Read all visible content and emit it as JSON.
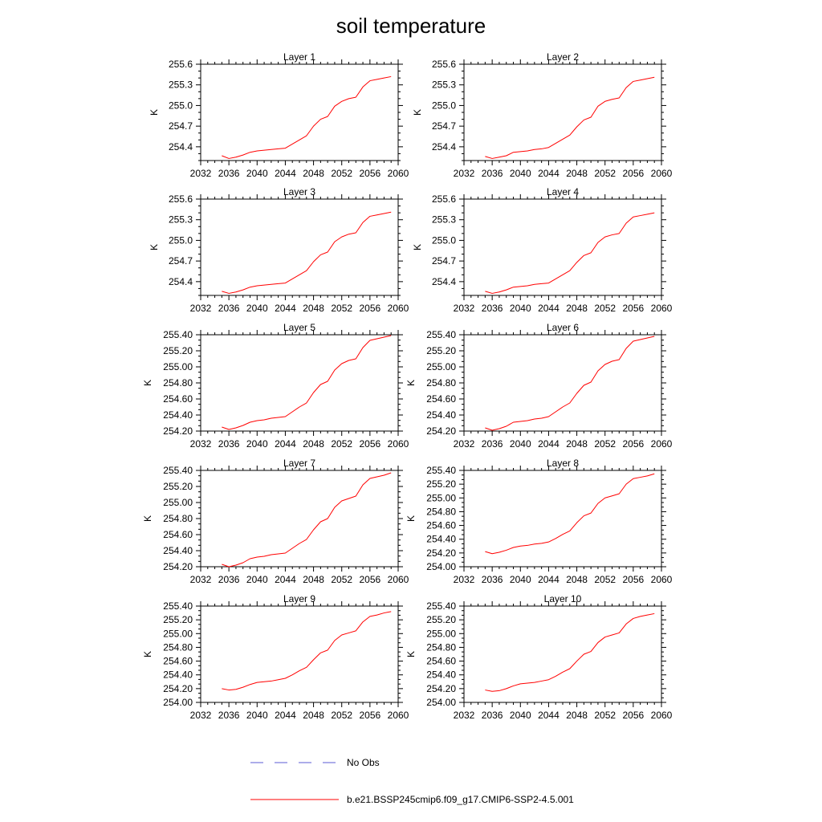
{
  "title": "soil temperature",
  "colors": {
    "model": "#ff0000",
    "obs": "#5b5bd6"
  },
  "legend": {
    "items": [
      {
        "label": "No Obs",
        "style": "dashed",
        "color": "#5b5bd6"
      },
      {
        "label": "b.e21.BSSP245cmip6.f09_g17.CMIP6-SSP2-4.5.001",
        "style": "solid",
        "color": "#ff0000"
      }
    ]
  },
  "chart_data": [
    {
      "type": "line",
      "title": "Layer 1",
      "ylabel": "K",
      "xlim": [
        2032,
        2060
      ],
      "ylim": [
        254.2,
        255.6
      ],
      "xticks": [
        2032,
        2036,
        2040,
        2044,
        2048,
        2052,
        2056,
        2060
      ],
      "yticks": [
        "254.4",
        "254.7",
        "255.0",
        "255.3",
        "255.6"
      ],
      "x": [
        2035,
        2036,
        2037,
        2038,
        2039,
        2040,
        2041,
        2042,
        2043,
        2044,
        2045,
        2046,
        2047,
        2048,
        2049,
        2050,
        2051,
        2052,
        2053,
        2054,
        2055,
        2056,
        2057,
        2058,
        2059
      ],
      "y": [
        254.27,
        254.23,
        254.25,
        254.28,
        254.32,
        254.34,
        254.35,
        254.36,
        254.37,
        254.38,
        254.44,
        254.5,
        254.56,
        254.7,
        254.8,
        254.84,
        254.99,
        255.06,
        255.1,
        255.12,
        255.27,
        255.36,
        255.38,
        255.4,
        255.42
      ]
    },
    {
      "type": "line",
      "title": "Layer 2",
      "ylabel": "K",
      "xlim": [
        2032,
        2060
      ],
      "ylim": [
        254.2,
        255.6
      ],
      "xticks": [
        2032,
        2036,
        2040,
        2044,
        2048,
        2052,
        2056,
        2060
      ],
      "yticks": [
        "254.4",
        "254.7",
        "255.0",
        "255.3",
        "255.6"
      ],
      "x": [
        2035,
        2036,
        2037,
        2038,
        2039,
        2040,
        2041,
        2042,
        2043,
        2044,
        2045,
        2046,
        2047,
        2048,
        2049,
        2050,
        2051,
        2052,
        2053,
        2054,
        2055,
        2056,
        2057,
        2058,
        2059
      ],
      "y": [
        254.26,
        254.23,
        254.25,
        254.27,
        254.32,
        254.33,
        254.34,
        254.36,
        254.37,
        254.39,
        254.45,
        254.51,
        254.57,
        254.69,
        254.79,
        254.83,
        254.99,
        255.06,
        255.09,
        255.11,
        255.26,
        255.35,
        255.37,
        255.39,
        255.41
      ]
    },
    {
      "type": "line",
      "title": "Layer 3",
      "ylabel": "K",
      "xlim": [
        2032,
        2060
      ],
      "ylim": [
        254.2,
        255.6
      ],
      "xticks": [
        2032,
        2036,
        2040,
        2044,
        2048,
        2052,
        2056,
        2060
      ],
      "yticks": [
        "254.4",
        "254.7",
        "255.0",
        "255.3",
        "255.6"
      ],
      "x": [
        2035,
        2036,
        2037,
        2038,
        2039,
        2040,
        2041,
        2042,
        2043,
        2044,
        2045,
        2046,
        2047,
        2048,
        2049,
        2050,
        2051,
        2052,
        2053,
        2054,
        2055,
        2056,
        2057,
        2058,
        2059
      ],
      "y": [
        254.26,
        254.23,
        254.25,
        254.28,
        254.32,
        254.34,
        254.35,
        254.36,
        254.37,
        254.38,
        254.44,
        254.5,
        254.56,
        254.69,
        254.79,
        254.83,
        254.98,
        255.05,
        255.09,
        255.11,
        255.26,
        255.35,
        255.37,
        255.39,
        255.41
      ]
    },
    {
      "type": "line",
      "title": "Layer 4",
      "ylabel": "K",
      "xlim": [
        2032,
        2060
      ],
      "ylim": [
        254.2,
        255.6
      ],
      "xticks": [
        2032,
        2036,
        2040,
        2044,
        2048,
        2052,
        2056,
        2060
      ],
      "yticks": [
        "254.4",
        "254.7",
        "255.0",
        "255.3",
        "255.6"
      ],
      "x": [
        2035,
        2036,
        2037,
        2038,
        2039,
        2040,
        2041,
        2042,
        2043,
        2044,
        2045,
        2046,
        2047,
        2048,
        2049,
        2050,
        2051,
        2052,
        2053,
        2054,
        2055,
        2056,
        2057,
        2058,
        2059
      ],
      "y": [
        254.26,
        254.23,
        254.25,
        254.28,
        254.32,
        254.33,
        254.34,
        254.36,
        254.37,
        254.38,
        254.44,
        254.5,
        254.56,
        254.68,
        254.78,
        254.82,
        254.97,
        255.05,
        255.08,
        255.1,
        255.25,
        255.34,
        255.36,
        255.38,
        255.4
      ]
    },
    {
      "type": "line",
      "title": "Layer 5",
      "ylabel": "K",
      "xlim": [
        2032,
        2060
      ],
      "ylim": [
        254.2,
        255.4
      ],
      "xticks": [
        2032,
        2036,
        2040,
        2044,
        2048,
        2052,
        2056,
        2060
      ],
      "yticks": [
        "254.20",
        "254.40",
        "254.60",
        "254.80",
        "255.00",
        "255.20",
        "255.40"
      ],
      "x": [
        2035,
        2036,
        2037,
        2038,
        2039,
        2040,
        2041,
        2042,
        2043,
        2044,
        2045,
        2046,
        2047,
        2048,
        2049,
        2050,
        2051,
        2052,
        2053,
        2054,
        2055,
        2056,
        2057,
        2058,
        2059
      ],
      "y": [
        254.25,
        254.22,
        254.24,
        254.27,
        254.31,
        254.33,
        254.34,
        254.36,
        254.37,
        254.38,
        254.44,
        254.5,
        254.55,
        254.68,
        254.78,
        254.82,
        254.96,
        255.04,
        255.08,
        255.1,
        255.24,
        255.33,
        255.35,
        255.37,
        255.39
      ]
    },
    {
      "type": "line",
      "title": "Layer 6",
      "ylabel": "K",
      "xlim": [
        2032,
        2060
      ],
      "ylim": [
        254.2,
        255.4
      ],
      "xticks": [
        2032,
        2036,
        2040,
        2044,
        2048,
        2052,
        2056,
        2060
      ],
      "yticks": [
        "254.20",
        "254.40",
        "254.60",
        "254.80",
        "255.00",
        "255.20",
        "255.40"
      ],
      "x": [
        2035,
        2036,
        2037,
        2038,
        2039,
        2040,
        2041,
        2042,
        2043,
        2044,
        2045,
        2046,
        2047,
        2048,
        2049,
        2050,
        2051,
        2052,
        2053,
        2054,
        2055,
        2056,
        2057,
        2058,
        2059
      ],
      "y": [
        254.24,
        254.21,
        254.23,
        254.26,
        254.31,
        254.32,
        254.33,
        254.35,
        254.36,
        254.38,
        254.44,
        254.5,
        254.55,
        254.67,
        254.77,
        254.81,
        254.95,
        255.03,
        255.07,
        255.09,
        255.23,
        255.32,
        255.34,
        255.36,
        255.38
      ]
    },
    {
      "type": "line",
      "title": "Layer 7",
      "ylabel": "K",
      "xlim": [
        2032,
        2060
      ],
      "ylim": [
        254.2,
        255.4
      ],
      "xticks": [
        2032,
        2036,
        2040,
        2044,
        2048,
        2052,
        2056,
        2060
      ],
      "yticks": [
        "254.20",
        "254.40",
        "254.60",
        "254.80",
        "255.00",
        "255.20",
        "255.40"
      ],
      "x": [
        2035,
        2036,
        2037,
        2038,
        2039,
        2040,
        2041,
        2042,
        2043,
        2044,
        2045,
        2046,
        2047,
        2048,
        2049,
        2050,
        2051,
        2052,
        2053,
        2054,
        2055,
        2056,
        2057,
        2058,
        2059
      ],
      "y": [
        254.23,
        254.2,
        254.22,
        254.25,
        254.3,
        254.32,
        254.33,
        254.35,
        254.36,
        254.37,
        254.43,
        254.49,
        254.54,
        254.66,
        254.76,
        254.8,
        254.94,
        255.02,
        255.05,
        255.08,
        255.22,
        255.3,
        255.32,
        255.34,
        255.37
      ]
    },
    {
      "type": "line",
      "title": "Layer 8",
      "ylabel": "K",
      "xlim": [
        2032,
        2060
      ],
      "ylim": [
        254.0,
        255.4
      ],
      "xticks": [
        2032,
        2036,
        2040,
        2044,
        2048,
        2052,
        2056,
        2060
      ],
      "yticks": [
        "254.00",
        "254.20",
        "254.40",
        "254.60",
        "254.80",
        "255.00",
        "255.20",
        "255.40"
      ],
      "x": [
        2035,
        2036,
        2037,
        2038,
        2039,
        2040,
        2041,
        2042,
        2043,
        2044,
        2045,
        2046,
        2047,
        2048,
        2049,
        2050,
        2051,
        2052,
        2053,
        2054,
        2055,
        2056,
        2057,
        2058,
        2059
      ],
      "y": [
        254.22,
        254.19,
        254.21,
        254.24,
        254.28,
        254.3,
        254.31,
        254.33,
        254.34,
        254.36,
        254.41,
        254.47,
        254.52,
        254.64,
        254.74,
        254.78,
        254.92,
        255.0,
        255.03,
        255.06,
        255.2,
        255.28,
        255.3,
        255.32,
        255.35
      ]
    },
    {
      "type": "line",
      "title": "Layer 9",
      "ylabel": "K",
      "xlim": [
        2032,
        2060
      ],
      "ylim": [
        254.0,
        255.4
      ],
      "xticks": [
        2032,
        2036,
        2040,
        2044,
        2048,
        2052,
        2056,
        2060
      ],
      "yticks": [
        "254.00",
        "254.20",
        "254.40",
        "254.60",
        "254.80",
        "255.00",
        "255.20",
        "255.40"
      ],
      "x": [
        2035,
        2036,
        2037,
        2038,
        2039,
        2040,
        2041,
        2042,
        2043,
        2044,
        2045,
        2046,
        2047,
        2048,
        2049,
        2050,
        2051,
        2052,
        2053,
        2054,
        2055,
        2056,
        2057,
        2058,
        2059
      ],
      "y": [
        254.2,
        254.18,
        254.19,
        254.22,
        254.26,
        254.29,
        254.3,
        254.31,
        254.33,
        254.35,
        254.4,
        254.46,
        254.51,
        254.62,
        254.72,
        254.76,
        254.9,
        254.98,
        255.01,
        255.04,
        255.17,
        255.25,
        255.27,
        255.3,
        255.32
      ]
    },
    {
      "type": "line",
      "title": "Layer 10",
      "ylabel": "K",
      "xlim": [
        2032,
        2060
      ],
      "ylim": [
        254.0,
        255.4
      ],
      "xticks": [
        2032,
        2036,
        2040,
        2044,
        2048,
        2052,
        2056,
        2060
      ],
      "yticks": [
        "254.00",
        "254.20",
        "254.40",
        "254.60",
        "254.80",
        "255.00",
        "255.20",
        "255.40"
      ],
      "x": [
        2035,
        2036,
        2037,
        2038,
        2039,
        2040,
        2041,
        2042,
        2043,
        2044,
        2045,
        2046,
        2047,
        2048,
        2049,
        2050,
        2051,
        2052,
        2053,
        2054,
        2055,
        2056,
        2057,
        2058,
        2059
      ],
      "y": [
        254.18,
        254.16,
        254.17,
        254.2,
        254.24,
        254.27,
        254.28,
        254.29,
        254.31,
        254.33,
        254.38,
        254.44,
        254.49,
        254.6,
        254.7,
        254.74,
        254.87,
        254.95,
        254.98,
        255.01,
        255.14,
        255.22,
        255.25,
        255.27,
        255.29
      ]
    }
  ]
}
